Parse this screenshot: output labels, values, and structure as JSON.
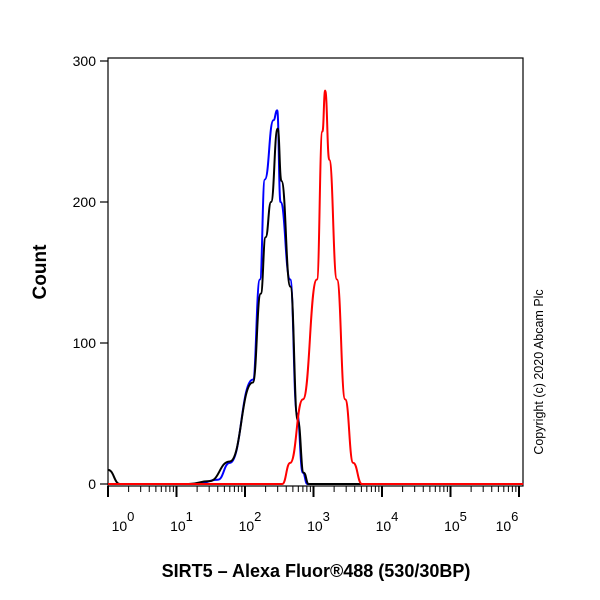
{
  "chart_data": {
    "type": "line",
    "title": "",
    "xlabel": "SIRT5 – Alexa Fluor®488 (530/30BP)",
    "ylabel": "Count",
    "xscale": "log",
    "xlim": [
      1,
      1150000
    ],
    "ylim": [
      0,
      300
    ],
    "yticks": [
      "0",
      "100",
      "200",
      "300"
    ],
    "xticks": [
      {
        "base": "10",
        "exp": "0"
      },
      {
        "base": "10",
        "exp": "1"
      },
      {
        "base": "10",
        "exp": "2"
      },
      {
        "base": "10",
        "exp": "3"
      },
      {
        "base": "10",
        "exp": "4"
      },
      {
        "base": "10",
        "exp": "5"
      },
      {
        "base": "10",
        "exp": "6"
      }
    ],
    "grid": false,
    "annotation": "Copyright (c) 2020 Abcam Plc",
    "series": [
      {
        "color": "#0000ff",
        "points": [
          [
            1,
            0
          ],
          [
            20,
            0
          ],
          [
            40,
            3
          ],
          [
            60,
            15
          ],
          [
            130,
            74
          ],
          [
            165,
            145
          ],
          [
            195,
            216
          ],
          [
            260,
            258
          ],
          [
            295,
            265
          ],
          [
            330,
            200
          ],
          [
            457,
            145
          ],
          [
            575,
            50
          ],
          [
            700,
            8
          ],
          [
            812,
            0
          ],
          [
            1150000,
            0
          ]
        ]
      },
      {
        "color": "#000000",
        "points": [
          [
            1,
            10
          ],
          [
            1.5,
            0
          ],
          [
            15,
            0
          ],
          [
            30,
            2
          ],
          [
            60,
            16
          ],
          [
            130,
            72
          ],
          [
            170,
            135
          ],
          [
            200,
            175
          ],
          [
            240,
            200
          ],
          [
            300,
            252
          ],
          [
            340,
            215
          ],
          [
            460,
            140
          ],
          [
            590,
            45
          ],
          [
            720,
            8
          ],
          [
            850,
            0
          ],
          [
            1150000,
            0
          ]
        ]
      },
      {
        "color": "#ff0000",
        "points": [
          [
            1,
            0
          ],
          [
            350,
            0
          ],
          [
            457,
            15
          ],
          [
            700,
            60
          ],
          [
            1120,
            145
          ],
          [
            1350,
            250
          ],
          [
            1480,
            279
          ],
          [
            1700,
            230
          ],
          [
            2200,
            145
          ],
          [
            2900,
            60
          ],
          [
            3800,
            15
          ],
          [
            5100,
            0
          ],
          [
            1150000,
            0
          ]
        ]
      }
    ]
  }
}
